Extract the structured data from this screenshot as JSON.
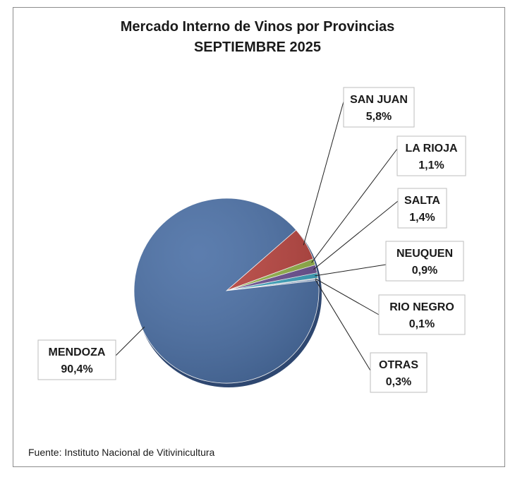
{
  "chart_data": {
    "type": "pie",
    "title": "Mercado Interno de Vinos por Provincias",
    "subtitle": "SEPTIEMBRE 2025",
    "slices": [
      {
        "label": "MENDOZA",
        "value": 90.4,
        "value_label": "90,4%",
        "color": "#4a6fa5"
      },
      {
        "label": "SAN JUAN",
        "value": 5.8,
        "value_label": "5,8%",
        "color": "#b8433e"
      },
      {
        "label": "LA RIOJA",
        "value": 1.1,
        "value_label": "1,1%",
        "color": "#93b347"
      },
      {
        "label": "SALTA",
        "value": 1.4,
        "value_label": "1,4%",
        "color": "#6b4f92"
      },
      {
        "label": "NEUQUEN",
        "value": 0.9,
        "value_label": "0,9%",
        "color": "#3aa4bf"
      },
      {
        "label": "RIO NEGRO",
        "value": 0.1,
        "value_label": "0,1%",
        "color": "#e8913a"
      },
      {
        "label": "OTRAS",
        "value": 0.3,
        "value_label": "0,3%",
        "color": "#8aa9d6"
      }
    ],
    "legend": "none",
    "label_style": "callout-boxes"
  },
  "source_note": "Fuente: Instituto Nacional de Vitivinicultura"
}
